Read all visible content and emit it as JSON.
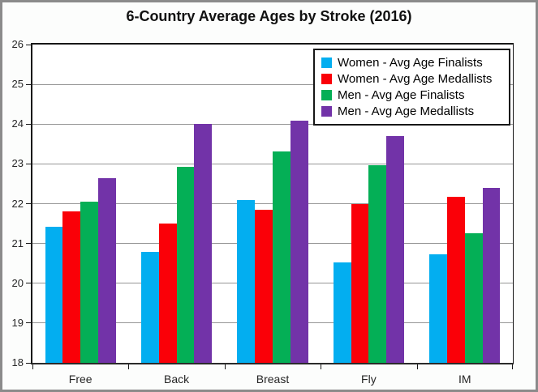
{
  "title": "6-Country Average Ages by Stroke (2016)",
  "chart_data": {
    "type": "bar",
    "title": "6-Country Average Ages by Stroke (2016)",
    "categories": [
      "Free",
      "Back",
      "Breast",
      "Fly",
      "IM"
    ],
    "series": [
      {
        "name": "Women - Avg Age Finalists",
        "color": "#03AEF0",
        "values": [
          21.42,
          20.78,
          22.1,
          20.52,
          20.72
        ]
      },
      {
        "name": "Women - Avg Age Medallists",
        "color": "#FA0008",
        "values": [
          21.8,
          21.5,
          21.85,
          22.0,
          22.17
        ]
      },
      {
        "name": "Men - Avg Age Finalists",
        "color": "#04AF56",
        "values": [
          22.05,
          22.93,
          23.32,
          22.97,
          21.25
        ]
      },
      {
        "name": "Men - Avg Age Medallists",
        "color": "#7233A8",
        "values": [
          22.65,
          24.0,
          24.08,
          23.7,
          22.4
        ]
      }
    ],
    "xlabel": "",
    "ylabel": "",
    "ylim": [
      18,
      26
    ],
    "ytick_step": 1,
    "ytick_labels": [
      "18",
      "19",
      "20",
      "21",
      "22",
      "23",
      "24",
      "25",
      "26"
    ],
    "grid": true,
    "gridline_color": "#969696",
    "legend_position": "top-right",
    "plot_background": "#ffffff"
  }
}
